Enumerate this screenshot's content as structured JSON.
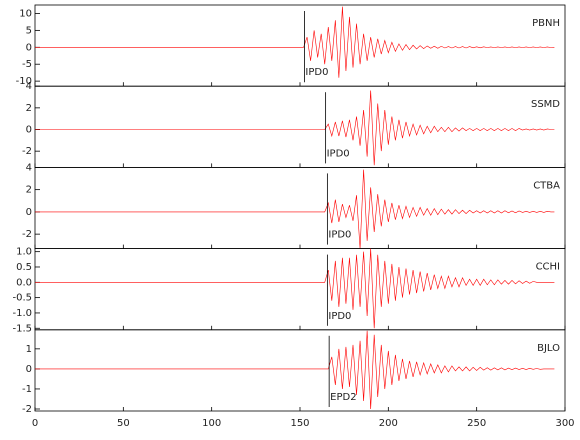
{
  "chart_data": {
    "type": "line",
    "color": "#ff0000",
    "xlim": [
      0,
      300
    ],
    "xticks": [
      0,
      50,
      100,
      150,
      200,
      250,
      300
    ],
    "x": [
      0,
      150,
      152,
      154,
      156,
      158,
      160,
      162,
      164,
      166,
      168,
      170,
      172,
      174,
      176,
      178,
      180,
      182,
      184,
      186,
      188,
      190,
      192,
      194,
      196,
      198,
      200,
      202,
      204,
      206,
      208,
      210,
      212,
      214,
      216,
      218,
      220,
      222,
      224,
      226,
      228,
      230,
      232,
      234,
      236,
      238,
      240,
      242,
      244,
      246,
      248,
      250,
      252,
      254,
      256,
      258,
      260,
      262,
      264,
      266,
      268,
      270,
      272,
      274,
      276,
      278,
      280,
      282,
      284,
      286,
      288,
      290,
      292,
      294
    ],
    "panels": [
      {
        "name": "PBNH",
        "ylim": [
          -11.5,
          12.5
        ],
        "yticks": [
          -10,
          -5,
          0,
          5,
          10
        ],
        "pick": 152.5,
        "phase": "IPD0",
        "values": [
          0,
          0,
          0,
          3,
          -4,
          5,
          -3,
          4,
          -5,
          6,
          -4,
          8,
          -9,
          12,
          -7,
          9,
          -6,
          7,
          -5,
          4,
          -4,
          3,
          -3,
          2.5,
          -2,
          2,
          -1.6,
          1.5,
          -1.2,
          1,
          -0.9,
          0.8,
          -0.7,
          0.6,
          -0.5,
          0.5,
          -0.4,
          0.4,
          -0.3,
          0.3,
          -0.3,
          0.3,
          -0.2,
          0.2,
          -0.2,
          0.2,
          -0.2,
          0.2,
          -0.2,
          0.2,
          -0.15,
          0.15,
          -0.15,
          0.15,
          -0.1,
          0.1,
          -0.1,
          0.1,
          -0.1,
          0.1,
          -0.1,
          0.1,
          -0.1,
          0.1,
          -0.1,
          0.1,
          -0.1,
          0.1,
          -0.1,
          0.1,
          -0.1,
          0.1,
          -0.1,
          0
        ]
      },
      {
        "name": "SSMD",
        "ylim": [
          -3.5,
          4
        ],
        "yticks": [
          -2,
          0,
          2,
          4
        ],
        "pick": 164.5,
        "phase": "IPD0",
        "values": [
          0,
          0,
          0,
          0,
          0,
          0,
          0,
          0,
          0,
          0.5,
          -0.6,
          0.7,
          -0.6,
          0.8,
          -0.7,
          0.9,
          -1,
          1.2,
          -1.5,
          1.8,
          -2.5,
          3.6,
          -3.3,
          2.4,
          -2,
          1.8,
          -1.4,
          1.2,
          -1,
          0.9,
          -0.8,
          0.7,
          -0.6,
          0.5,
          -0.5,
          0.4,
          -0.4,
          0.3,
          -0.3,
          0.3,
          -0.2,
          0.2,
          -0.2,
          0.2,
          -0.2,
          0.15,
          -0.15,
          0.15,
          -0.1,
          0.1,
          -0.1,
          0.1,
          -0.1,
          0.1,
          -0.1,
          0.1,
          -0.1,
          0.1,
          -0.1,
          0.1,
          -0.1,
          0.1,
          -0.1,
          0.1,
          -0.05,
          0.05,
          -0.05,
          0.05,
          -0.05,
          0.05,
          -0.05,
          0.05,
          0,
          0
        ]
      },
      {
        "name": "CTBA",
        "ylim": [
          -3.3,
          4
        ],
        "yticks": [
          -2,
          0,
          2,
          4
        ],
        "pick": 165.5,
        "phase": "IPD0",
        "values": [
          0,
          0,
          0,
          0,
          0,
          0,
          0,
          0,
          0,
          0.8,
          -1,
          1.1,
          -0.9,
          0.7,
          -0.5,
          0.6,
          -0.8,
          1.5,
          -3.3,
          3.8,
          -2.6,
          2.2,
          -1.8,
          1.6,
          -1.3,
          1.1,
          -0.9,
          0.8,
          -0.7,
          0.6,
          -0.6,
          0.5,
          -0.5,
          0.4,
          -0.4,
          0.4,
          -0.3,
          0.3,
          -0.3,
          0.3,
          -0.25,
          0.25,
          -0.2,
          0.2,
          -0.2,
          0.2,
          -0.15,
          0.15,
          -0.15,
          0.15,
          -0.1,
          0.1,
          -0.1,
          0.1,
          -0.1,
          0.1,
          -0.1,
          0.1,
          -0.1,
          0.1,
          -0.08,
          0.08,
          -0.08,
          0.08,
          -0.05,
          0.05,
          -0.05,
          0.05,
          -0.05,
          0.05,
          -0.05,
          0.05,
          0,
          0
        ]
      },
      {
        "name": "CCHI",
        "ylim": [
          -1.55,
          1.1
        ],
        "yticks": [
          -1.5,
          {
            "value": -1,
            "label": "-1.0"
          },
          -0.5,
          {
            "value": 0,
            "label": "0.0"
          },
          0.5,
          {
            "value": 1,
            "label": "1.0"
          }
        ],
        "pick": 165.5,
        "phase": "IPD0",
        "values": [
          0,
          0,
          0,
          0,
          0,
          0,
          0,
          0,
          0,
          0.4,
          -0.6,
          0.7,
          -0.8,
          0.8,
          -0.7,
          0.8,
          -0.9,
          0.9,
          -0.8,
          1,
          -1.1,
          1.1,
          -1.5,
          0.9,
          -0.8,
          0.7,
          -0.7,
          0.6,
          -0.6,
          0.5,
          -0.5,
          0.45,
          -0.4,
          0.4,
          -0.35,
          0.35,
          -0.3,
          0.3,
          -0.25,
          0.25,
          -0.2,
          0.2,
          -0.2,
          0.2,
          -0.15,
          0.15,
          -0.15,
          0.15,
          -0.1,
          0.1,
          -0.1,
          0.1,
          -0.1,
          0.1,
          -0.08,
          0.08,
          -0.08,
          0.08,
          -0.06,
          0.06,
          -0.06,
          0.06,
          -0.05,
          0.05,
          -0.04,
          0.04,
          -0.03,
          0.03,
          0,
          0,
          0,
          0,
          0,
          0
        ]
      },
      {
        "name": "BJLO",
        "ylim": [
          -2.1,
          1.95
        ],
        "yticks": [
          -2,
          -1,
          0,
          1
        ],
        "pick": 166.5,
        "phase": "EPD2",
        "values": [
          0,
          0,
          0,
          0,
          0,
          0,
          0,
          0,
          0,
          0,
          0.6,
          -0.8,
          1,
          -1,
          1.1,
          -0.9,
          1.2,
          -1.3,
          1.4,
          -1.6,
          1.9,
          -2,
          1.7,
          -1.4,
          1.2,
          -1,
          0.9,
          -0.8,
          0.7,
          -0.6,
          0.5,
          -0.5,
          0.4,
          -0.4,
          0.35,
          -0.3,
          0.3,
          -0.25,
          0.25,
          -0.2,
          0.2,
          -0.2,
          0.15,
          -0.15,
          0.15,
          -0.1,
          0.1,
          -0.1,
          0.1,
          -0.1,
          0.08,
          -0.08,
          0.08,
          -0.06,
          0.06,
          -0.06,
          0.05,
          -0.05,
          0.05,
          -0.05,
          0.04,
          -0.04,
          0.04,
          -0.03,
          0.03,
          -0.03,
          0.03,
          -0.02,
          0.02,
          -0.02,
          0,
          0,
          0,
          0
        ]
      }
    ]
  }
}
